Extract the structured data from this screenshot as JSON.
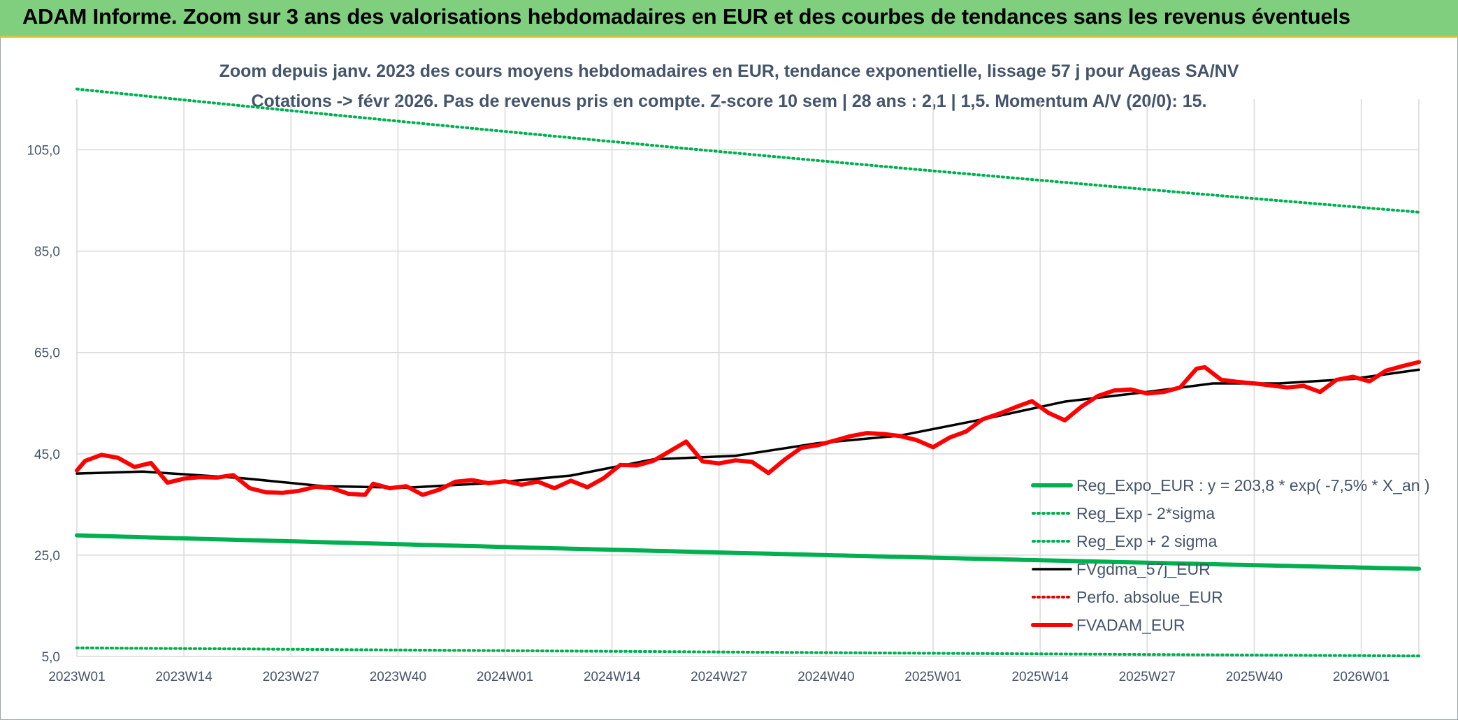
{
  "header": {
    "title": "ADAM Informe. Zoom sur 3 ans des valorisations hebdomadaires en EUR et des courbes de tendances sans les revenus éventuels"
  },
  "colors": {
    "header_band": "#7fcf7f",
    "header_underline": "#d8c23c",
    "reg_expo": "#00b050",
    "fvgdma": "#000000",
    "perfo": "#e00000",
    "fvadam": "#ff0000",
    "grid": "#d9d9d9",
    "text": "#44546a"
  },
  "chart_data": {
    "type": "line",
    "title": "Zoom depuis janv. 2023 des cours moyens hebdomadaires en EUR, tendance exponentielle, lissage 57 j pour Ageas SA/NV",
    "subtitle": "Cotations -> févr 2026. Pas de revenus pris en compte. Z-score 10 sem | 28 ans : 2,1 | 1,5. Momentum A/V (20/0): 15.",
    "y_ticks": [
      "105,0",
      "85,0",
      "65,0",
      "45,0",
      "25,0",
      "5,0"
    ],
    "y_tick_values": [
      105,
      85,
      65,
      45,
      25,
      5
    ],
    "ylim": [
      5,
      115
    ],
    "x_ticks": [
      "2023W01",
      "2023W14",
      "2023W27",
      "2023W40",
      "2024W01",
      "2024W14",
      "2024W27",
      "2024W40",
      "2025W01",
      "2025W14",
      "2025W27",
      "2025W40",
      "2026W01"
    ],
    "x_tick_index": [
      0,
      13,
      26,
      39,
      52,
      65,
      78,
      91,
      104,
      117,
      130,
      143,
      156
    ],
    "x_count": 164,
    "grid": true,
    "legend_position": "bottom-right",
    "series": [
      {
        "name": "Reg_Expo_EUR : y = 203,8 * exp( -7,5% *  X_an )",
        "style": "solid-thick",
        "color": "#00b050",
        "start": 28.9,
        "end": 22.3
      },
      {
        "name": "Reg_Exp - 2*sigma",
        "style": "dotted",
        "color": "#00b050",
        "start": 6.7,
        "end": 5.1
      },
      {
        "name": "Reg_Exp + 2 sigma",
        "style": "dotted",
        "color": "#00b050",
        "start": 117.0,
        "end": 92.7
      },
      {
        "name": "FVgdma_57j_EUR",
        "style": "solid",
        "color": "#000000",
        "points": [
          [
            0,
            41.1
          ],
          [
            8,
            41.5
          ],
          [
            20,
            40.2
          ],
          [
            30,
            38.6
          ],
          [
            40,
            38.3
          ],
          [
            50,
            39.2
          ],
          [
            60,
            40.7
          ],
          [
            70,
            43.9
          ],
          [
            80,
            44.6
          ],
          [
            90,
            47.1
          ],
          [
            100,
            48.6
          ],
          [
            110,
            51.8
          ],
          [
            120,
            55.3
          ],
          [
            130,
            57.2
          ],
          [
            138,
            58.9
          ],
          [
            146,
            58.9
          ],
          [
            155,
            59.8
          ],
          [
            163,
            61.6
          ]
        ]
      },
      {
        "name": "Perfo. absolue_EUR",
        "style": "dotted",
        "color": "#e00000",
        "points": []
      },
      {
        "name": "FVADAM_EUR",
        "style": "solid-thick",
        "color": "#ff0000",
        "points": [
          [
            0,
            41.7
          ],
          [
            1,
            43.6
          ],
          [
            3,
            44.8
          ],
          [
            5,
            44.2
          ],
          [
            7,
            42.4
          ],
          [
            9,
            43.2
          ],
          [
            11,
            39.3
          ],
          [
            13,
            40.1
          ],
          [
            15,
            40.4
          ],
          [
            17,
            40.3
          ],
          [
            19,
            40.8
          ],
          [
            21,
            38.2
          ],
          [
            23,
            37.4
          ],
          [
            25,
            37.3
          ],
          [
            27,
            37.7
          ],
          [
            29,
            38.5
          ],
          [
            31,
            38.2
          ],
          [
            33,
            37.1
          ],
          [
            35,
            36.9
          ],
          [
            36,
            39.1
          ],
          [
            38,
            38.2
          ],
          [
            40,
            38.6
          ],
          [
            42,
            36.9
          ],
          [
            44,
            37.9
          ],
          [
            46,
            39.5
          ],
          [
            48,
            39.8
          ],
          [
            50,
            39.2
          ],
          [
            52,
            39.6
          ],
          [
            54,
            38.9
          ],
          [
            56,
            39.5
          ],
          [
            58,
            38.2
          ],
          [
            60,
            39.7
          ],
          [
            62,
            38.4
          ],
          [
            64,
            40.2
          ],
          [
            66,
            42.8
          ],
          [
            68,
            42.7
          ],
          [
            70,
            43.6
          ],
          [
            72,
            45.5
          ],
          [
            74,
            47.4
          ],
          [
            76,
            43.5
          ],
          [
            78,
            43.1
          ],
          [
            80,
            43.7
          ],
          [
            82,
            43.4
          ],
          [
            84,
            41.2
          ],
          [
            86,
            43.9
          ],
          [
            88,
            46.2
          ],
          [
            90,
            46.7
          ],
          [
            92,
            47.6
          ],
          [
            94,
            48.5
          ],
          [
            96,
            49.1
          ],
          [
            98,
            48.9
          ],
          [
            100,
            48.5
          ],
          [
            102,
            47.7
          ],
          [
            104,
            46.3
          ],
          [
            106,
            48.2
          ],
          [
            108,
            49.4
          ],
          [
            110,
            51.8
          ],
          [
            112,
            52.9
          ],
          [
            114,
            54.2
          ],
          [
            116,
            55.4
          ],
          [
            118,
            53.1
          ],
          [
            120,
            51.6
          ],
          [
            122,
            54.3
          ],
          [
            124,
            56.4
          ],
          [
            126,
            57.5
          ],
          [
            128,
            57.7
          ],
          [
            130,
            56.9
          ],
          [
            132,
            57.2
          ],
          [
            134,
            58.1
          ],
          [
            136,
            61.8
          ],
          [
            137,
            62.1
          ],
          [
            139,
            59.6
          ],
          [
            141,
            59.2
          ],
          [
            143,
            58.9
          ],
          [
            145,
            58.5
          ],
          [
            147,
            58.1
          ],
          [
            149,
            58.4
          ],
          [
            151,
            57.2
          ],
          [
            153,
            59.6
          ],
          [
            155,
            60.2
          ],
          [
            157,
            59.3
          ],
          [
            159,
            61.4
          ],
          [
            161,
            62.3
          ],
          [
            163,
            63.1
          ]
        ]
      }
    ]
  }
}
